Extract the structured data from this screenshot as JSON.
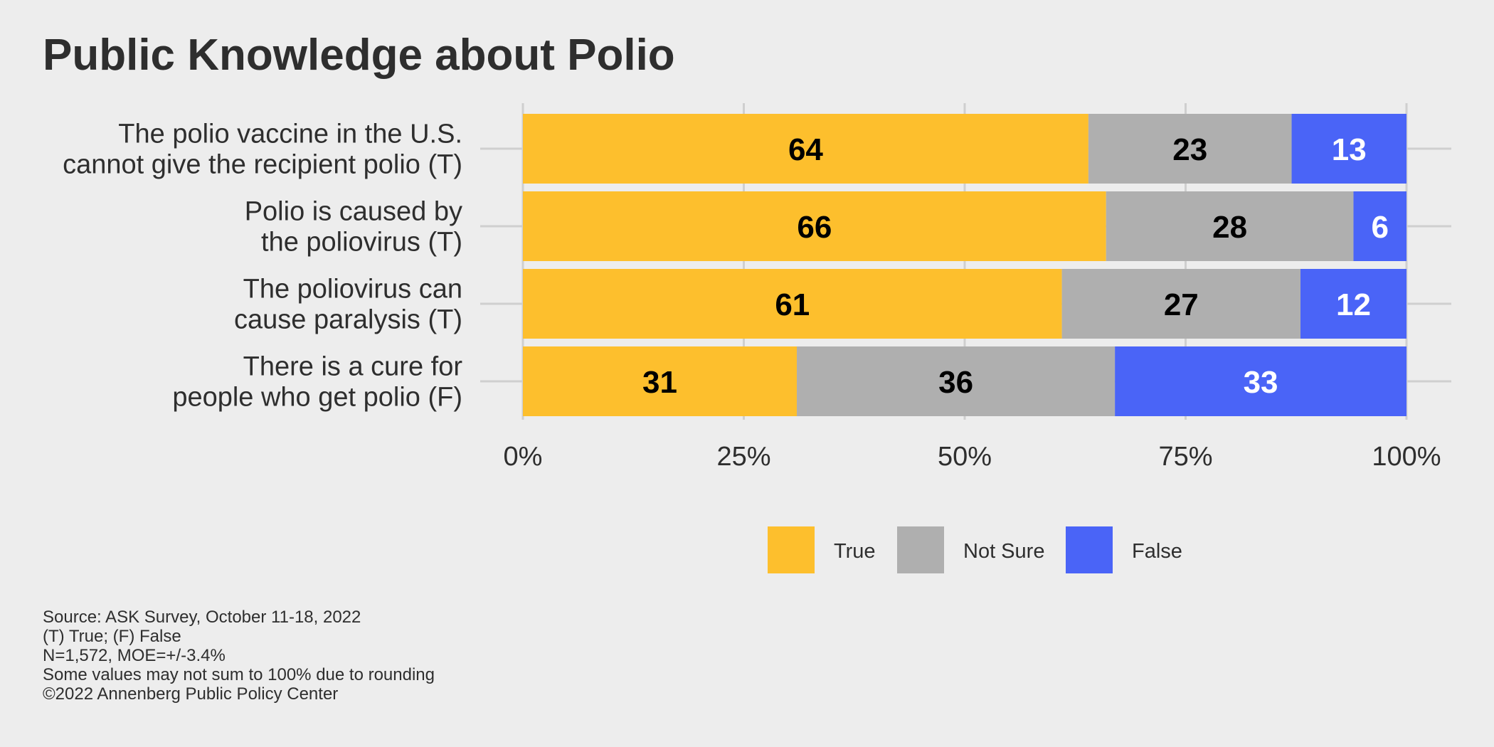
{
  "title": "Public Knowledge about Polio",
  "footer": [
    "Source: ASK Survey, October 11-18, 2022",
    "(T) True; (F) False",
    "N=1,572, MOE=+/-3.4%",
    "Some values may not sum to 100% due to rounding",
    "©2022 Annenberg Public Policy Center"
  ],
  "chart_data": {
    "type": "bar",
    "orientation": "horizontal",
    "stacked": true,
    "categories": [
      [
        "The polio vaccine in the U.S.",
        "cannot give the recipient polio (T)"
      ],
      [
        "Polio is caused by",
        "the poliovirus (T)"
      ],
      [
        "The poliovirus can",
        "cause paralysis (T)"
      ],
      [
        "There is a cure for",
        "people who get polio (F)"
      ]
    ],
    "series": [
      {
        "name": "True",
        "color": "#fdbf2d",
        "label_color": "#000000",
        "values": [
          64,
          66,
          61,
          31
        ]
      },
      {
        "name": "Not Sure",
        "color": "#afafaf",
        "label_color": "#000000",
        "values": [
          23,
          28,
          27,
          36
        ]
      },
      {
        "name": "False",
        "color": "#4a64f7",
        "label_color": "#ffffff",
        "values": [
          13,
          6,
          12,
          33
        ]
      }
    ],
    "x_ticks": [
      "0%",
      "25%",
      "50%",
      "75%",
      "100%"
    ],
    "xlim": [
      0,
      100
    ],
    "xlabel": "",
    "ylabel": "",
    "grid": true,
    "legend_position": "bottom"
  }
}
